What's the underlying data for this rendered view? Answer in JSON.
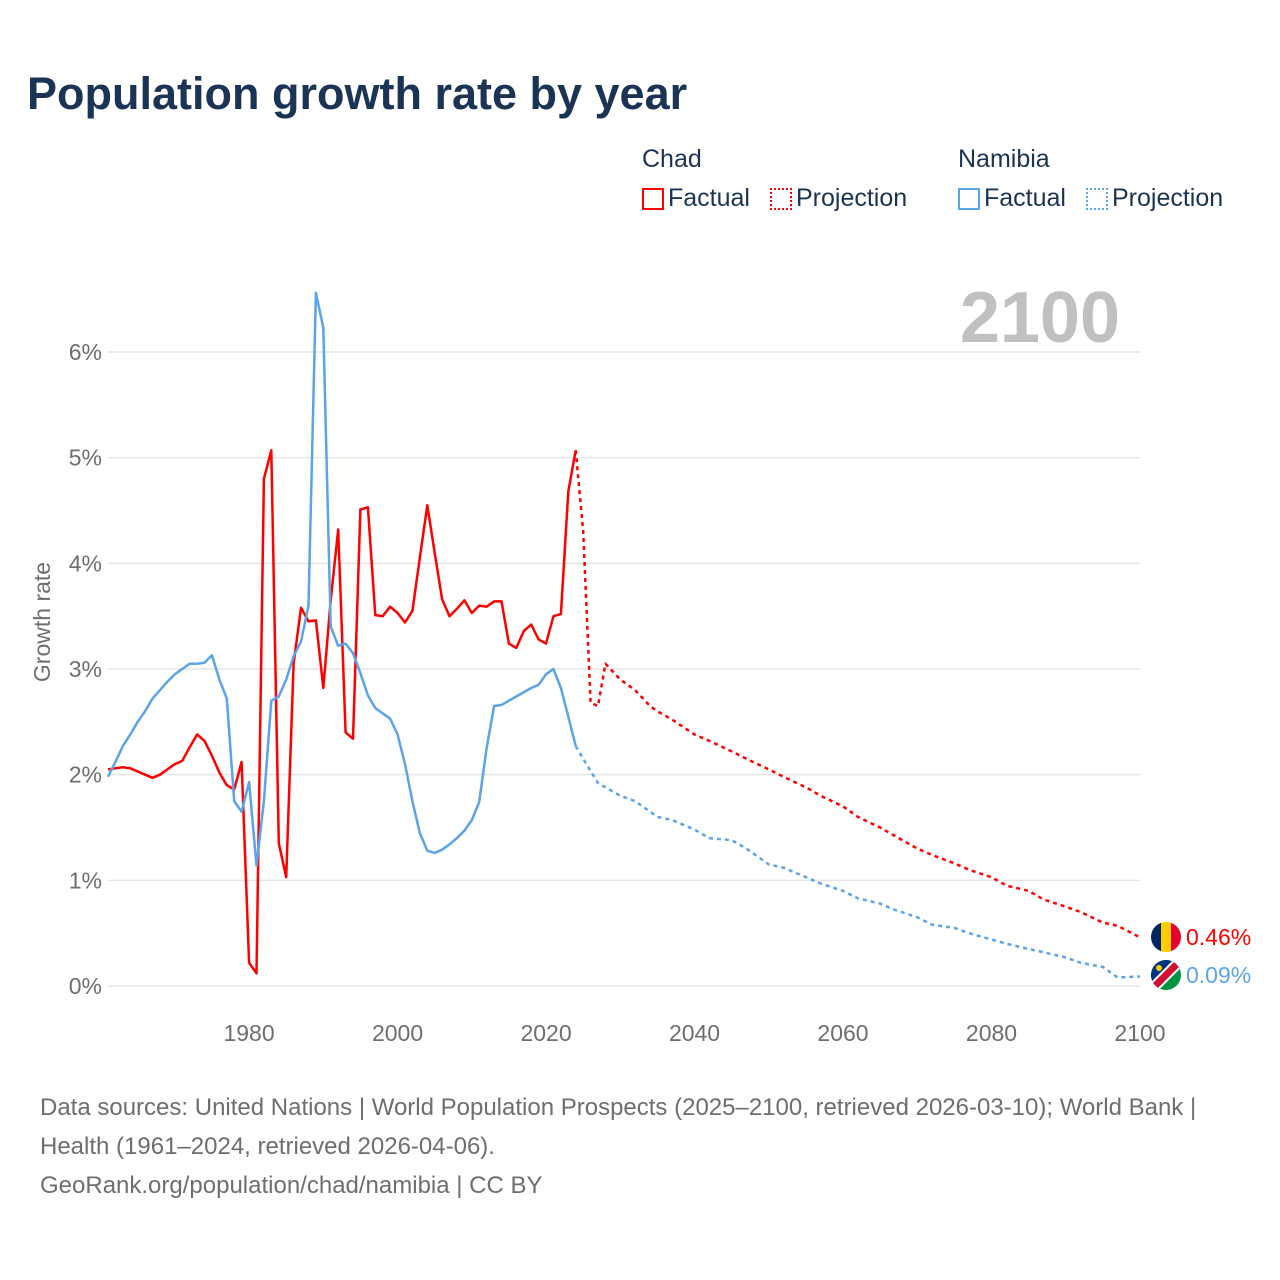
{
  "title": "Population growth rate by year",
  "legend": {
    "groups": [
      {
        "name": "Chad",
        "color": "#ff0000",
        "factual": "Factual",
        "projection": "Projection"
      },
      {
        "name": "Namibia",
        "color": "#5ba4ea",
        "factual": "Factual",
        "projection": "Projection"
      }
    ]
  },
  "year_label": "2100",
  "footer": {
    "sources": "Data sources: United Nations | World Population Prospects (2025–2100, retrieved 2026-03-10); World Bank | Health (1961–2024, retrieved 2026-04-06).",
    "link": "GeoRank.org/population/chad/namibia | CC BY"
  },
  "chart_data": {
    "type": "line",
    "title": "Population growth rate by year",
    "xlabel": "",
    "ylabel": "Growth rate",
    "xlim": [
      1961,
      2100
    ],
    "ylim": [
      0,
      6
    ],
    "x_ticks": [
      1980,
      2000,
      2020,
      2040,
      2060,
      2080,
      2100
    ],
    "x_tick_labels": [
      "1980",
      "2000",
      "2020",
      "2040",
      "2060",
      "2080",
      "2100"
    ],
    "y_ticks": [
      0,
      1,
      2,
      3,
      4,
      5,
      6
    ],
    "y_tick_labels": [
      "0%",
      "1%",
      "2%",
      "3%",
      "4%",
      "5%",
      "6%"
    ],
    "grid": true,
    "legend_position": "top-right",
    "series": [
      {
        "name": "Chad Factual",
        "color": "#ff0000",
        "style": "solid",
        "x": [
          1961,
          1962,
          1963,
          1964,
          1965,
          1966,
          1967,
          1968,
          1969,
          1970,
          1971,
          1972,
          1973,
          1974,
          1975,
          1976,
          1977,
          1978,
          1979,
          1980,
          1981,
          1982,
          1983,
          1984,
          1985,
          1986,
          1987,
          1988,
          1989,
          1990,
          1991,
          1992,
          1993,
          1994,
          1995,
          1996,
          1997,
          1998,
          1999,
          2000,
          2001,
          2002,
          2003,
          2004,
          2005,
          2006,
          2007,
          2008,
          2009,
          2010,
          2011,
          2012,
          2013,
          2014,
          2015,
          2016,
          2017,
          2018,
          2019,
          2020,
          2021,
          2022,
          2023,
          2024
        ],
        "y": [
          2.05,
          2.06,
          2.07,
          2.06,
          2.03,
          2.0,
          1.97,
          2.0,
          2.05,
          2.1,
          2.13,
          2.26,
          2.38,
          2.32,
          2.18,
          2.02,
          1.9,
          1.86,
          2.12,
          0.22,
          0.12,
          4.8,
          5.07,
          1.35,
          1.03,
          3.05,
          3.58,
          3.45,
          3.46,
          2.82,
          3.65,
          4.32,
          2.4,
          2.34,
          4.51,
          4.53,
          3.51,
          3.5,
          3.59,
          3.53,
          3.44,
          3.55,
          4.05,
          4.55,
          4.1,
          3.66,
          3.5,
          3.57,
          3.65,
          3.53,
          3.6,
          3.59,
          3.64,
          3.64,
          3.24,
          3.2,
          3.36,
          3.42,
          3.28,
          3.24,
          3.5,
          3.52,
          4.68,
          5.07
        ]
      },
      {
        "name": "Chad Projection",
        "color": "#ff0000",
        "style": "dotted",
        "x": [
          2024,
          2025,
          2026,
          2027,
          2028,
          2030,
          2032,
          2034,
          2035,
          2037,
          2040,
          2042,
          2045,
          2047,
          2050,
          2052,
          2055,
          2057,
          2060,
          2062,
          2065,
          2067,
          2070,
          2072,
          2075,
          2077,
          2080,
          2082,
          2085,
          2087,
          2090,
          2092,
          2095,
          2097,
          2100
        ],
        "y": [
          5.07,
          4.3,
          2.68,
          2.65,
          3.05,
          2.9,
          2.8,
          2.65,
          2.6,
          2.52,
          2.38,
          2.32,
          2.22,
          2.15,
          2.05,
          1.98,
          1.88,
          1.8,
          1.7,
          1.6,
          1.5,
          1.42,
          1.3,
          1.24,
          1.16,
          1.1,
          1.03,
          0.95,
          0.9,
          0.82,
          0.75,
          0.7,
          0.6,
          0.57,
          0.46
        ]
      },
      {
        "name": "Namibia Factual",
        "color": "#5ba4ea",
        "style": "solid",
        "x": [
          1961,
          1962,
          1963,
          1964,
          1965,
          1966,
          1967,
          1968,
          1969,
          1970,
          1971,
          1972,
          1973,
          1974,
          1975,
          1976,
          1977,
          1978,
          1979,
          1980,
          1981,
          1982,
          1983,
          1984,
          1985,
          1986,
          1987,
          1988,
          1989,
          1990,
          1991,
          1992,
          1993,
          1994,
          1995,
          1996,
          1997,
          1998,
          1999,
          2000,
          2001,
          2002,
          2003,
          2004,
          2005,
          2006,
          2007,
          2008,
          2009,
          2010,
          2011,
          2012,
          2013,
          2014,
          2015,
          2016,
          2017,
          2018,
          2019,
          2020,
          2021,
          2022,
          2023,
          2024
        ],
        "y": [
          1.98,
          2.12,
          2.27,
          2.38,
          2.5,
          2.6,
          2.72,
          2.8,
          2.88,
          2.95,
          3.0,
          3.05,
          3.05,
          3.06,
          3.13,
          2.9,
          2.72,
          1.75,
          1.65,
          1.93,
          1.14,
          1.75,
          2.7,
          2.74,
          2.9,
          3.12,
          3.26,
          3.6,
          6.56,
          6.23,
          3.4,
          3.22,
          3.24,
          3.15,
          2.96,
          2.75,
          2.63,
          2.58,
          2.53,
          2.38,
          2.1,
          1.75,
          1.45,
          1.28,
          1.26,
          1.29,
          1.34,
          1.4,
          1.47,
          1.57,
          1.74,
          2.25,
          2.65,
          2.66,
          2.7,
          2.74,
          2.78,
          2.82,
          2.85,
          2.95,
          3.0,
          2.82,
          2.55,
          2.27
        ]
      },
      {
        "name": "Namibia Projection",
        "color": "#5ba4ea",
        "style": "dotted",
        "x": [
          2024,
          2025,
          2027,
          2030,
          2032,
          2035,
          2037,
          2040,
          2042,
          2045,
          2047,
          2050,
          2052,
          2055,
          2057,
          2060,
          2062,
          2065,
          2067,
          2070,
          2072,
          2075,
          2077,
          2080,
          2082,
          2085,
          2087,
          2090,
          2092,
          2095,
          2097,
          2100
        ],
        "y": [
          2.27,
          2.15,
          1.92,
          1.8,
          1.75,
          1.6,
          1.57,
          1.48,
          1.4,
          1.38,
          1.3,
          1.15,
          1.12,
          1.03,
          0.97,
          0.9,
          0.83,
          0.78,
          0.72,
          0.65,
          0.58,
          0.55,
          0.5,
          0.44,
          0.4,
          0.35,
          0.32,
          0.27,
          0.22,
          0.18,
          0.08,
          0.09
        ]
      }
    ],
    "end_labels": [
      {
        "series": "Chad",
        "text": "0.46%",
        "value": 0.46,
        "color": "#ff0000"
      },
      {
        "series": "Namibia",
        "text": "0.09%",
        "value": 0.09,
        "color": "#5ba4ea"
      }
    ]
  }
}
